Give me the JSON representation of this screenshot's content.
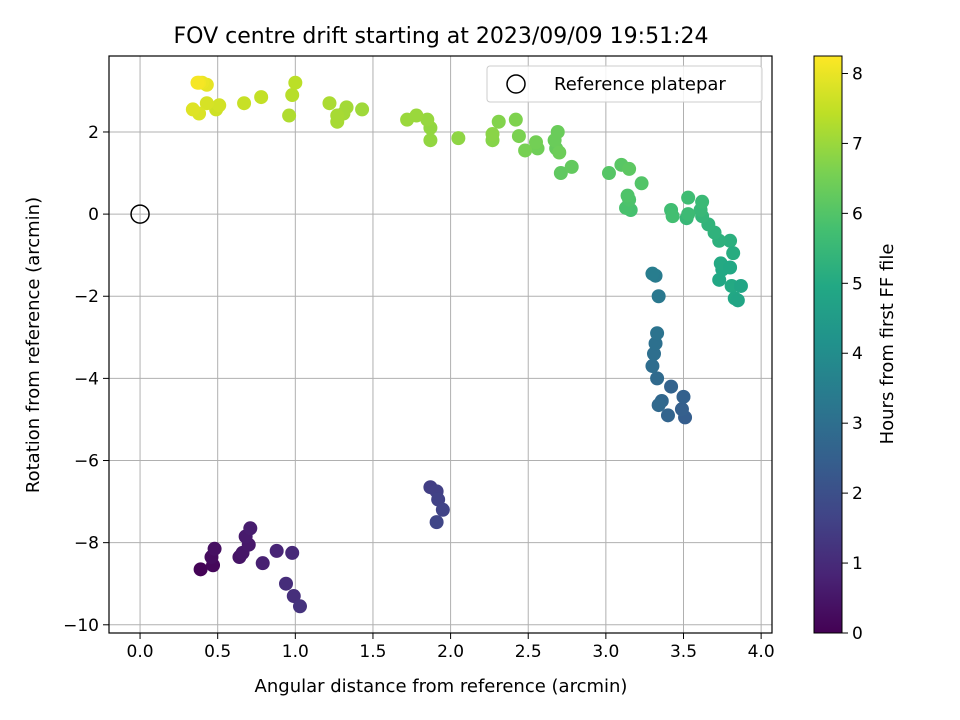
{
  "chart_data": {
    "type": "scatter",
    "title": "FOV centre drift starting at 2023/09/09 19:51:24",
    "xlabel": "Angular distance from reference (arcmin)",
    "ylabel": "Rotation from reference (arcmin)",
    "xlim": [
      -0.2,
      4.07
    ],
    "ylim": [
      -10.2,
      3.85
    ],
    "xticks": [
      "0.0",
      "0.5",
      "1.0",
      "1.5",
      "2.0",
      "2.5",
      "3.0",
      "3.5",
      "4.0"
    ],
    "yticks": [
      "2",
      "0",
      "−2",
      "−4",
      "−6",
      "−8",
      "−10"
    ],
    "grid": true,
    "legend": {
      "position": "top-right",
      "label": "Reference platepar"
    },
    "reference": {
      "x": 0.0,
      "y": 0.0
    },
    "colorbar": {
      "label": "Hours from first FF file",
      "range": [
        0,
        8.25
      ],
      "ticks": [
        "0",
        "1",
        "2",
        "3",
        "4",
        "5",
        "6",
        "7",
        "8"
      ],
      "colormap": "viridis"
    },
    "points": [
      {
        "x": 0.39,
        "y": -8.65,
        "h": 0.05
      },
      {
        "x": 0.47,
        "y": -8.55,
        "h": 0.15
      },
      {
        "x": 0.46,
        "y": -8.35,
        "h": 0.25
      },
      {
        "x": 0.48,
        "y": -8.15,
        "h": 0.35
      },
      {
        "x": 0.64,
        "y": -8.35,
        "h": 0.45
      },
      {
        "x": 0.66,
        "y": -8.25,
        "h": 0.5
      },
      {
        "x": 0.7,
        "y": -8.05,
        "h": 0.55
      },
      {
        "x": 0.68,
        "y": -7.85,
        "h": 0.6
      },
      {
        "x": 0.71,
        "y": -7.65,
        "h": 0.65
      },
      {
        "x": 0.79,
        "y": -8.5,
        "h": 0.75
      },
      {
        "x": 0.88,
        "y": -8.2,
        "h": 0.85
      },
      {
        "x": 0.98,
        "y": -8.25,
        "h": 0.95
      },
      {
        "x": 0.94,
        "y": -9.0,
        "h": 1.05
      },
      {
        "x": 0.99,
        "y": -9.3,
        "h": 1.1
      },
      {
        "x": 1.03,
        "y": -9.55,
        "h": 1.2
      },
      {
        "x": 1.87,
        "y": -6.65,
        "h": 1.5
      },
      {
        "x": 1.91,
        "y": -6.75,
        "h": 1.55
      },
      {
        "x": 1.92,
        "y": -6.95,
        "h": 1.6
      },
      {
        "x": 1.95,
        "y": -7.2,
        "h": 1.65
      },
      {
        "x": 1.91,
        "y": -7.5,
        "h": 1.7
      },
      {
        "x": 3.51,
        "y": -4.95,
        "h": 2.45
      },
      {
        "x": 3.49,
        "y": -4.75,
        "h": 2.5
      },
      {
        "x": 3.5,
        "y": -4.45,
        "h": 2.55
      },
      {
        "x": 3.42,
        "y": -4.2,
        "h": 2.6
      },
      {
        "x": 3.4,
        "y": -4.9,
        "h": 2.65
      },
      {
        "x": 3.36,
        "y": -4.55,
        "h": 2.75
      },
      {
        "x": 3.34,
        "y": -4.65,
        "h": 2.8
      },
      {
        "x": 3.33,
        "y": -4.0,
        "h": 2.85
      },
      {
        "x": 3.3,
        "y": -3.7,
        "h": 2.95
      },
      {
        "x": 3.31,
        "y": -3.4,
        "h": 3.0
      },
      {
        "x": 3.32,
        "y": -3.15,
        "h": 3.05
      },
      {
        "x": 3.33,
        "y": -2.9,
        "h": 3.15
      },
      {
        "x": 3.34,
        "y": -2.0,
        "h": 3.3
      },
      {
        "x": 3.32,
        "y": -1.5,
        "h": 3.4
      },
      {
        "x": 3.3,
        "y": -1.45,
        "h": 3.45
      },
      {
        "x": 3.73,
        "y": -1.6,
        "h": 4.9
      },
      {
        "x": 3.75,
        "y": -1.35,
        "h": 4.95
      },
      {
        "x": 3.74,
        "y": -1.2,
        "h": 5.0
      },
      {
        "x": 3.8,
        "y": -1.3,
        "h": 4.95
      },
      {
        "x": 3.81,
        "y": -1.75,
        "h": 5.0
      },
      {
        "x": 3.83,
        "y": -2.05,
        "h": 4.9
      },
      {
        "x": 3.85,
        "y": -2.1,
        "h": 4.85
      },
      {
        "x": 3.87,
        "y": -1.75,
        "h": 4.85
      },
      {
        "x": 3.8,
        "y": -0.65,
        "h": 5.2
      },
      {
        "x": 3.82,
        "y": -0.95,
        "h": 5.1
      },
      {
        "x": 3.73,
        "y": -0.65,
        "h": 5.25
      },
      {
        "x": 3.7,
        "y": -0.45,
        "h": 5.3
      },
      {
        "x": 3.66,
        "y": -0.25,
        "h": 5.35
      },
      {
        "x": 3.62,
        "y": -0.05,
        "h": 5.4
      },
      {
        "x": 3.61,
        "y": 0.1,
        "h": 5.5
      },
      {
        "x": 3.62,
        "y": 0.3,
        "h": 5.55
      },
      {
        "x": 3.52,
        "y": -0.1,
        "h": 5.5
      },
      {
        "x": 3.53,
        "y": 0.0,
        "h": 5.6
      },
      {
        "x": 3.53,
        "y": 0.4,
        "h": 5.65
      },
      {
        "x": 3.42,
        "y": 0.1,
        "h": 5.7
      },
      {
        "x": 3.43,
        "y": -0.05,
        "h": 5.75
      },
      {
        "x": 3.16,
        "y": 0.1,
        "h": 5.8
      },
      {
        "x": 3.13,
        "y": 0.15,
        "h": 5.85
      },
      {
        "x": 3.15,
        "y": 0.35,
        "h": 5.9
      },
      {
        "x": 3.14,
        "y": 0.45,
        "h": 5.95
      },
      {
        "x": 3.23,
        "y": 0.75,
        "h": 6.0
      },
      {
        "x": 3.02,
        "y": 1.0,
        "h": 6.05
      },
      {
        "x": 3.1,
        "y": 1.2,
        "h": 6.1
      },
      {
        "x": 3.15,
        "y": 1.1,
        "h": 6.15
      },
      {
        "x": 2.71,
        "y": 1.0,
        "h": 6.2
      },
      {
        "x": 2.78,
        "y": 1.15,
        "h": 6.25
      },
      {
        "x": 2.68,
        "y": 1.6,
        "h": 6.3
      },
      {
        "x": 2.67,
        "y": 1.8,
        "h": 6.35
      },
      {
        "x": 2.69,
        "y": 2.0,
        "h": 6.35
      },
      {
        "x": 2.7,
        "y": 1.5,
        "h": 6.4
      },
      {
        "x": 2.56,
        "y": 1.6,
        "h": 6.45
      },
      {
        "x": 2.55,
        "y": 1.75,
        "h": 6.5
      },
      {
        "x": 2.48,
        "y": 1.55,
        "h": 6.55
      },
      {
        "x": 2.44,
        "y": 1.9,
        "h": 6.6
      },
      {
        "x": 2.42,
        "y": 2.3,
        "h": 6.65
      },
      {
        "x": 2.31,
        "y": 2.25,
        "h": 6.7
      },
      {
        "x": 2.27,
        "y": 1.8,
        "h": 6.75
      },
      {
        "x": 2.27,
        "y": 1.95,
        "h": 6.8
      },
      {
        "x": 2.05,
        "y": 1.85,
        "h": 6.85
      },
      {
        "x": 1.87,
        "y": 1.8,
        "h": 6.9
      },
      {
        "x": 1.87,
        "y": 2.1,
        "h": 6.9
      },
      {
        "x": 1.85,
        "y": 2.3,
        "h": 6.95
      },
      {
        "x": 1.78,
        "y": 2.4,
        "h": 7.0
      },
      {
        "x": 1.72,
        "y": 2.3,
        "h": 7.0
      },
      {
        "x": 1.43,
        "y": 2.55,
        "h": 7.05
      },
      {
        "x": 1.33,
        "y": 2.6,
        "h": 7.1
      },
      {
        "x": 1.31,
        "y": 2.45,
        "h": 7.1
      },
      {
        "x": 1.27,
        "y": 2.25,
        "h": 7.15
      },
      {
        "x": 1.27,
        "y": 2.4,
        "h": 7.15
      },
      {
        "x": 1.22,
        "y": 2.7,
        "h": 7.2
      },
      {
        "x": 0.96,
        "y": 2.4,
        "h": 7.25
      },
      {
        "x": 0.98,
        "y": 2.9,
        "h": 7.35
      },
      {
        "x": 1.0,
        "y": 3.2,
        "h": 7.4
      },
      {
        "x": 0.78,
        "y": 2.85,
        "h": 7.5
      },
      {
        "x": 0.67,
        "y": 2.7,
        "h": 7.55
      },
      {
        "x": 0.49,
        "y": 2.55,
        "h": 7.65
      },
      {
        "x": 0.51,
        "y": 2.65,
        "h": 7.7
      },
      {
        "x": 0.43,
        "y": 2.7,
        "h": 7.75
      },
      {
        "x": 0.38,
        "y": 2.45,
        "h": 7.8
      },
      {
        "x": 0.34,
        "y": 2.55,
        "h": 7.85
      },
      {
        "x": 0.43,
        "y": 3.15,
        "h": 7.95
      },
      {
        "x": 0.4,
        "y": 3.2,
        "h": 8.0
      },
      {
        "x": 0.38,
        "y": 3.2,
        "h": 8.1
      },
      {
        "x": 0.37,
        "y": 3.2,
        "h": 8.15
      }
    ]
  }
}
